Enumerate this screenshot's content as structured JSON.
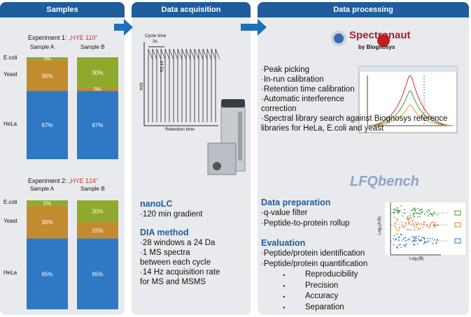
{
  "samples": {
    "title": "Samples",
    "experiments": [
      {
        "title": "Experiment 1: ",
        "highlight": "„HYE 110“",
        "samples": [
          "Sample A",
          "Sample B"
        ],
        "species": [
          "E.coli",
          "Yeast",
          "HeLa"
        ],
        "values": [
          [
            3,
            30,
            67
          ],
          [
            30,
            3,
            67
          ]
        ],
        "value_labels": [
          [
            "3%",
            "30%",
            "67%"
          ],
          [
            "30%",
            "3%",
            "67%"
          ]
        ]
      },
      {
        "title": "Experiment 2: ",
        "highlight": "„HYE 124“",
        "samples": [
          "Sample A",
          "Sample B"
        ],
        "species": [
          "E.coli",
          "Yeast",
          "HeLa"
        ],
        "values": [
          [
            5,
            30,
            65
          ],
          [
            20,
            15,
            65
          ]
        ],
        "value_labels": [
          [
            "5%",
            "30%",
            "65%"
          ],
          [
            "20%",
            "15%",
            "65%"
          ]
        ]
      }
    ],
    "colors": [
      "#8fa92c",
      "#c18b2e",
      "#2f78c4"
    ]
  },
  "acquisition": {
    "title": "Data acquisition",
    "plot": {
      "cycle": "Cycle time",
      "cycle_value": "3s",
      "window": "24 Da",
      "y_label": "m/z",
      "x_label": "Retention time"
    },
    "sections": [
      {
        "title": "nanoLC",
        "items": [
          "·120 min gradient"
        ]
      },
      {
        "title": "DIA method",
        "items": [
          "·28 windows a 24 Da",
          "·1 MS spectra between each cycle",
          "·14 Hz acquisition rate for MS and MSMS"
        ]
      }
    ]
  },
  "processing": {
    "title": "Data processing",
    "logo": {
      "name": "Spectronaut",
      "by": "by Biognosys"
    },
    "steps": [
      "·Peak picking",
      "·In-run calibration",
      "·Retention time calibration",
      "·Automatic interference correction",
      "·Spectral library search against Biognosys reference libraries for HeLa, E.coli and yeast"
    ],
    "lfq_logo": "LFQbench",
    "preparation": {
      "title": "Data preparation",
      "items": [
        "·q-value filter",
        "·Peptide-to-protein rollup"
      ]
    },
    "evaluation": {
      "title": "Evaluation",
      "items": [
        "·Peptide/protein identification",
        "·Peptide/protein quantification"
      ],
      "subitems": [
        "Reproducibility",
        "Precision",
        "Accuracy",
        "Separation"
      ]
    },
    "scatter": {
      "y_label": "Log₂(A:B)",
      "x_label": "Log₂(B)"
    }
  }
}
